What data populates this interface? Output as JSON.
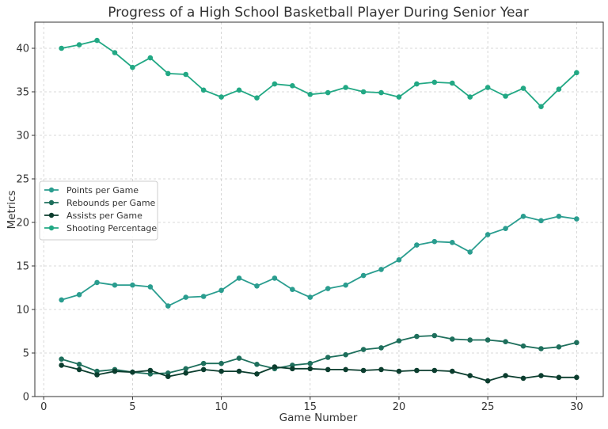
{
  "chart_data": {
    "type": "line",
    "title": "Progress of a High School Basketball Player During Senior Year",
    "xlabel": "Game Number",
    "ylabel": "Metrics",
    "xlim": [
      -0.5,
      31.5
    ],
    "ylim": [
      0,
      43
    ],
    "xticks": [
      0,
      5,
      10,
      15,
      20,
      25,
      30
    ],
    "yticks": [
      0,
      5,
      10,
      15,
      20,
      25,
      30,
      35,
      40
    ],
    "grid": true,
    "legend_position": "center-left",
    "x": [
      1,
      2,
      3,
      4,
      5,
      6,
      7,
      8,
      9,
      10,
      11,
      12,
      13,
      14,
      15,
      16,
      17,
      18,
      19,
      20,
      21,
      22,
      23,
      24,
      25,
      26,
      27,
      28,
      29,
      30
    ],
    "series": [
      {
        "name": "Points per Game",
        "color": "#2a9d8f",
        "values": [
          11.1,
          11.7,
          13.1,
          12.8,
          12.8,
          12.6,
          10.4,
          11.4,
          11.5,
          12.2,
          13.6,
          12.7,
          13.6,
          12.3,
          11.4,
          12.4,
          12.8,
          13.9,
          14.6,
          15.7,
          17.4,
          17.8,
          17.7,
          16.6,
          18.6,
          19.3,
          20.7,
          20.2,
          20.7,
          20.4
        ]
      },
      {
        "name": "Rebounds per Game",
        "color": "#1e6f5c",
        "values": [
          4.3,
          3.7,
          2.9,
          3.1,
          2.8,
          2.6,
          2.7,
          3.2,
          3.8,
          3.8,
          4.4,
          3.7,
          3.2,
          3.6,
          3.8,
          4.5,
          4.8,
          5.4,
          5.6,
          6.4,
          6.9,
          7.0,
          6.6,
          6.5,
          6.5,
          6.3,
          5.8,
          5.5,
          5.7,
          6.2
        ]
      },
      {
        "name": "Assists per Game",
        "color": "#0b3d2e",
        "values": [
          3.6,
          3.1,
          2.5,
          2.9,
          2.8,
          3.0,
          2.3,
          2.7,
          3.1,
          2.9,
          2.9,
          2.6,
          3.4,
          3.2,
          3.2,
          3.1,
          3.1,
          3.0,
          3.1,
          2.9,
          3.0,
          3.0,
          2.9,
          2.4,
          1.8,
          2.4,
          2.1,
          2.4,
          2.2,
          2.2
        ]
      },
      {
        "name": "Shooting Percentage",
        "color": "#22a884",
        "values": [
          40.0,
          40.4,
          40.9,
          39.5,
          37.8,
          38.9,
          37.1,
          37.0,
          35.2,
          34.4,
          35.2,
          34.3,
          35.9,
          35.7,
          34.7,
          34.9,
          35.5,
          35.0,
          34.9,
          34.4,
          35.9,
          36.1,
          36.0,
          34.4,
          35.5,
          34.5,
          35.4,
          33.3,
          35.3,
          37.2
        ]
      }
    ]
  }
}
